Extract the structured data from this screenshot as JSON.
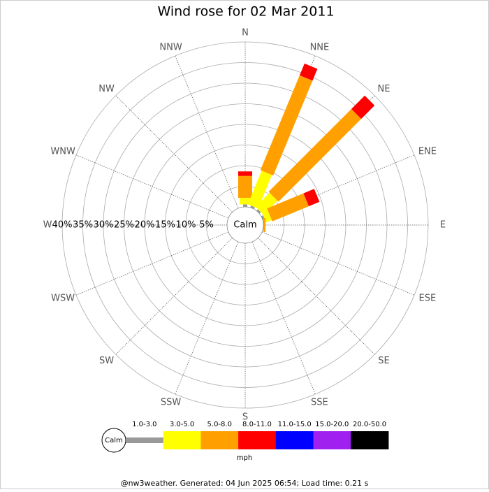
{
  "chart_data": {
    "type": "windrose",
    "title": "Wind rose for 02 Mar 2011",
    "directions": [
      "N",
      "NNE",
      "NE",
      "ENE",
      "E",
      "ESE",
      "SE",
      "SSE",
      "S",
      "SSW",
      "SW",
      "WSW",
      "W",
      "WNW",
      "NW",
      "NNW"
    ],
    "series": [
      {
        "name": "1.0-3.0",
        "color": "#999999",
        "values": [
          0.6,
          0.5,
          0.5,
          0.5,
          0,
          0,
          0,
          0,
          0,
          0,
          0,
          0,
          0,
          0,
          0,
          0
        ]
      },
      {
        "name": "3.0-5.0",
        "color": "#ffff00",
        "values": [
          1.6,
          8.8,
          4.8,
          1.5,
          0,
          0,
          0,
          0,
          0,
          0,
          0,
          0,
          0,
          0,
          0,
          0
        ]
      },
      {
        "name": "5.0-8.0",
        "color": "#ffa000",
        "values": [
          5.3,
          24.9,
          28.4,
          9.6,
          0.5,
          0,
          0,
          0,
          0,
          0,
          0,
          0,
          0,
          0,
          0,
          0
        ]
      },
      {
        "name": "8.0-11.0",
        "color": "#ff0000",
        "values": [
          1.1,
          3.1,
          4.6,
          2.8,
          0,
          0,
          0,
          0,
          0,
          0,
          0,
          0,
          0,
          0,
          0,
          0
        ]
      },
      {
        "name": "11.0-15.0",
        "color": "#0000ff",
        "values": [
          0,
          0,
          0,
          0,
          0,
          0,
          0,
          0,
          0,
          0,
          0,
          0,
          0,
          0,
          0,
          0
        ]
      },
      {
        "name": "15.0-20.0",
        "color": "#a020f0",
        "values": [
          0,
          0,
          0,
          0,
          0,
          0,
          0,
          0,
          0,
          0,
          0,
          0,
          0,
          0,
          0,
          0
        ]
      },
      {
        "name": "20.0-50.0",
        "color": "#000000",
        "values": [
          0,
          0,
          0,
          0,
          0,
          0,
          0,
          0,
          0,
          0,
          0,
          0,
          0,
          0,
          0,
          0
        ]
      }
    ],
    "rlim": [
      0,
      40
    ],
    "rticks": [
      {
        "value": 5,
        "label": "5%"
      },
      {
        "value": 10,
        "label": "10%"
      },
      {
        "value": 15,
        "label": "15%"
      },
      {
        "value": 20,
        "label": "20%"
      },
      {
        "value": 25,
        "label": "25%"
      },
      {
        "value": 30,
        "label": "30%"
      },
      {
        "value": 35,
        "label": "35%"
      },
      {
        "value": 40,
        "label": "40%"
      }
    ],
    "calm_label": "Calm",
    "unit": "mph",
    "footer": "@nw3weather. Generated: 04 Jun 2025 06:54; Load time: 0.21 s"
  }
}
